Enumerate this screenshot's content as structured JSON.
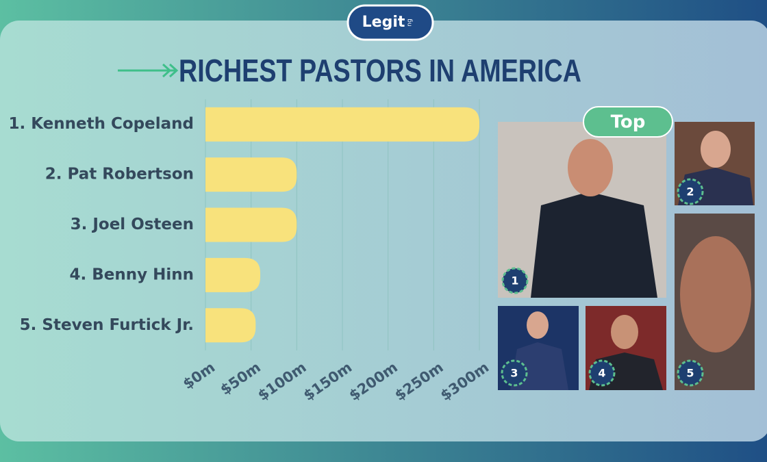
{
  "chart_data": {
    "type": "bar",
    "orientation": "horizontal",
    "title": "RICHEST PASTORS IN AMERICA",
    "categories": [
      "1. Kenneth Copeland",
      "2. Pat Robertson",
      "3. Joel Osteen",
      "4. Benny Hinn",
      "5. Steven Furtick Jr."
    ],
    "values": [
      300,
      100,
      100,
      60,
      55
    ],
    "color": "#f8e27c",
    "xlim": [
      0,
      300
    ],
    "xticks": [
      {
        "value": 0,
        "label": "$0m"
      },
      {
        "value": 50,
        "label": "$50m"
      },
      {
        "value": 100,
        "label": "$100m"
      },
      {
        "value": 150,
        "label": "$150m"
      },
      {
        "value": 200,
        "label": "$200m"
      },
      {
        "value": 250,
        "label": "$250m"
      },
      {
        "value": 300,
        "label": "$300m"
      }
    ],
    "grid": true
  },
  "logo": {
    "text": "Legit",
    "suffix": "ng"
  },
  "badge": "Top",
  "photos": [
    "1",
    "2",
    "3",
    "4",
    "5"
  ]
}
